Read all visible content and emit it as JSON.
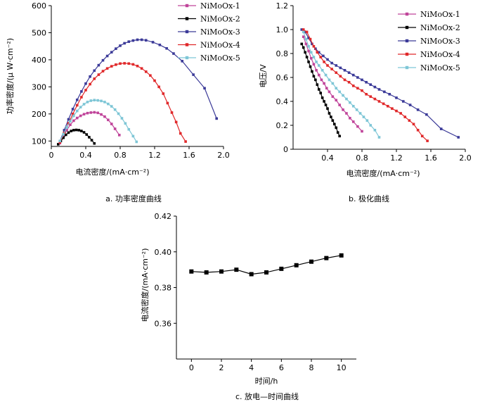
{
  "chart_data": [
    {
      "type": "line",
      "caption": "a.  功率密度曲线",
      "xlabel": "电流密度/(mA·cm⁻²)",
      "ylabel": "功率密度/(μ W·cm⁻²)",
      "xlim": [
        0,
        2.0
      ],
      "ylim": [
        80,
        600
      ],
      "xticks": [
        "0",
        "0.4",
        "0.8",
        "1.2",
        "1.6",
        "2.0"
      ],
      "xtick_values": [
        0,
        0.4,
        0.8,
        1.2,
        1.6,
        2.0
      ],
      "yticks": [
        "100",
        "200",
        "300",
        "400",
        "500",
        "600"
      ],
      "ytick_values": [
        100,
        200,
        300,
        400,
        500,
        600
      ],
      "legend_position": "top-right",
      "series": [
        {
          "name": "NiMoOx-1",
          "color": "#c0449a",
          "marker": "square",
          "x": [
            0.1,
            0.14,
            0.18,
            0.22,
            0.26,
            0.3,
            0.34,
            0.38,
            0.42,
            0.46,
            0.5,
            0.54,
            0.58,
            0.62,
            0.66,
            0.7,
            0.74,
            0.79
          ],
          "y": [
            92,
            118,
            140,
            160,
            175,
            185,
            193,
            199,
            203,
            205,
            206,
            204,
            198,
            190,
            178,
            163,
            145,
            122
          ]
        },
        {
          "name": "NiMoOx-2",
          "color": "#000000",
          "marker": "square",
          "x": [
            0.08,
            0.11,
            0.14,
            0.17,
            0.2,
            0.23,
            0.26,
            0.29,
            0.32,
            0.35,
            0.38,
            0.41,
            0.44,
            0.47,
            0.5
          ],
          "y": [
            88,
            100,
            112,
            123,
            131,
            137,
            140,
            141,
            140,
            137,
            132,
            124,
            114,
            103,
            91
          ]
        },
        {
          "name": "NiMoOx-3",
          "color": "#3b3a98",
          "marker": "square",
          "x": [
            0.1,
            0.15,
            0.2,
            0.25,
            0.3,
            0.35,
            0.4,
            0.45,
            0.5,
            0.55,
            0.6,
            0.65,
            0.7,
            0.75,
            0.8,
            0.85,
            0.9,
            0.95,
            1.0,
            1.05,
            1.1,
            1.18,
            1.26,
            1.34,
            1.42,
            1.52,
            1.65,
            1.78,
            1.92
          ],
          "y": [
            100,
            140,
            180,
            218,
            252,
            283,
            312,
            338,
            360,
            380,
            398,
            414,
            428,
            441,
            452,
            461,
            467,
            471,
            474,
            474,
            472,
            465,
            455,
            442,
            423,
            395,
            345,
            295,
            183
          ]
        },
        {
          "name": "NiMoOx-4",
          "color": "#e0282a",
          "marker": "square",
          "x": [
            0.1,
            0.15,
            0.2,
            0.25,
            0.3,
            0.35,
            0.4,
            0.45,
            0.5,
            0.55,
            0.6,
            0.65,
            0.7,
            0.75,
            0.8,
            0.85,
            0.9,
            0.95,
            1.0,
            1.05,
            1.1,
            1.15,
            1.2,
            1.25,
            1.3,
            1.35,
            1.4,
            1.45,
            1.5,
            1.56
          ],
          "y": [
            95,
            130,
            165,
            200,
            232,
            262,
            288,
            310,
            330,
            345,
            358,
            368,
            376,
            382,
            386,
            387,
            386,
            383,
            377,
            368,
            356,
            342,
            323,
            300,
            275,
            240,
            205,
            170,
            128,
            98
          ]
        },
        {
          "name": "NiMoOx-5",
          "color": "#7ec6d6",
          "marker": "square",
          "x": [
            0.1,
            0.14,
            0.18,
            0.22,
            0.26,
            0.3,
            0.34,
            0.38,
            0.42,
            0.46,
            0.5,
            0.54,
            0.58,
            0.62,
            0.66,
            0.7,
            0.74,
            0.78,
            0.82,
            0.86,
            0.9,
            0.95,
            0.99
          ],
          "y": [
            100,
            125,
            150,
            173,
            193,
            211,
            225,
            236,
            244,
            249,
            251,
            250,
            248,
            244,
            237,
            228,
            216,
            201,
            184,
            165,
            143,
            118,
            97
          ]
        }
      ]
    },
    {
      "type": "line",
      "caption": "b.  极化曲线",
      "xlabel": "电流密度/(mA·cm⁻²)",
      "ylabel": "电压/V",
      "xlim": [
        0,
        2.0
      ],
      "ylim": [
        0,
        1.2
      ],
      "xticks": [
        "0.4",
        "0.8",
        "1.2",
        "1.6",
        "2.0"
      ],
      "xtick_values": [
        0.4,
        0.8,
        1.2,
        1.6,
        2.0
      ],
      "yticks": [
        "0",
        "0.2",
        "0.4",
        "0.6",
        "0.8",
        "1.0",
        "1.2"
      ],
      "ytick_values": [
        0,
        0.2,
        0.4,
        0.6,
        0.8,
        1.0,
        1.2
      ],
      "legend_position": "top-right",
      "series": [
        {
          "name": "NiMoOx-1",
          "color": "#c0449a",
          "marker": "square",
          "x": [
            0.12,
            0.15,
            0.18,
            0.21,
            0.24,
            0.27,
            0.3,
            0.33,
            0.36,
            0.39,
            0.42,
            0.46,
            0.5,
            0.54,
            0.58,
            0.62,
            0.66,
            0.7,
            0.75,
            0.8
          ],
          "y": [
            0.94,
            0.88,
            0.82,
            0.76,
            0.71,
            0.66,
            0.62,
            0.58,
            0.55,
            0.51,
            0.48,
            0.44,
            0.41,
            0.37,
            0.33,
            0.3,
            0.26,
            0.23,
            0.19,
            0.15
          ]
        },
        {
          "name": "NiMoOx-2",
          "color": "#000000",
          "marker": "square",
          "x": [
            0.1,
            0.12,
            0.14,
            0.16,
            0.18,
            0.2,
            0.22,
            0.24,
            0.26,
            0.28,
            0.3,
            0.32,
            0.34,
            0.36,
            0.38,
            0.4,
            0.42,
            0.44,
            0.46,
            0.48,
            0.5,
            0.52,
            0.54
          ],
          "y": [
            0.88,
            0.85,
            0.81,
            0.77,
            0.73,
            0.69,
            0.65,
            0.61,
            0.58,
            0.54,
            0.5,
            0.47,
            0.43,
            0.4,
            0.37,
            0.34,
            0.3,
            0.27,
            0.24,
            0.21,
            0.18,
            0.14,
            0.11
          ]
        },
        {
          "name": "NiMoOx-3",
          "color": "#3b3a98",
          "marker": "square",
          "x": [
            0.1,
            0.14,
            0.18,
            0.22,
            0.26,
            0.3,
            0.35,
            0.4,
            0.45,
            0.5,
            0.55,
            0.6,
            0.65,
            0.7,
            0.75,
            0.8,
            0.85,
            0.9,
            0.95,
            1.0,
            1.06,
            1.12,
            1.2,
            1.28,
            1.36,
            1.45,
            1.55,
            1.72,
            1.92
          ],
          "y": [
            1.0,
            0.98,
            0.93,
            0.88,
            0.84,
            0.81,
            0.78,
            0.75,
            0.72,
            0.7,
            0.68,
            0.66,
            0.64,
            0.62,
            0.6,
            0.58,
            0.56,
            0.54,
            0.52,
            0.5,
            0.48,
            0.46,
            0.43,
            0.4,
            0.37,
            0.33,
            0.29,
            0.17,
            0.1
          ]
        },
        {
          "name": "NiMoOx-4",
          "color": "#e0282a",
          "marker": "square",
          "x": [
            0.12,
            0.16,
            0.2,
            0.24,
            0.28,
            0.32,
            0.36,
            0.4,
            0.45,
            0.5,
            0.55,
            0.6,
            0.65,
            0.7,
            0.75,
            0.8,
            0.85,
            0.9,
            0.95,
            1.0,
            1.05,
            1.1,
            1.15,
            1.2,
            1.25,
            1.3,
            1.35,
            1.4,
            1.45,
            1.5,
            1.56
          ],
          "y": [
            1.0,
            0.98,
            0.92,
            0.86,
            0.81,
            0.77,
            0.73,
            0.7,
            0.67,
            0.64,
            0.61,
            0.58,
            0.56,
            0.53,
            0.51,
            0.49,
            0.46,
            0.44,
            0.42,
            0.4,
            0.38,
            0.36,
            0.34,
            0.32,
            0.3,
            0.27,
            0.24,
            0.21,
            0.16,
            0.11,
            0.07
          ]
        },
        {
          "name": "NiMoOx-5",
          "color": "#7ec6d6",
          "marker": "square",
          "x": [
            0.12,
            0.15,
            0.18,
            0.21,
            0.24,
            0.27,
            0.3,
            0.34,
            0.38,
            0.42,
            0.46,
            0.5,
            0.54,
            0.58,
            0.62,
            0.66,
            0.7,
            0.74,
            0.78,
            0.82,
            0.86,
            0.9,
            0.95,
            1.0
          ],
          "y": [
            0.98,
            0.92,
            0.86,
            0.81,
            0.77,
            0.73,
            0.7,
            0.66,
            0.62,
            0.58,
            0.55,
            0.51,
            0.48,
            0.45,
            0.42,
            0.39,
            0.36,
            0.33,
            0.3,
            0.27,
            0.24,
            0.2,
            0.16,
            0.1
          ]
        }
      ]
    },
    {
      "type": "line",
      "caption": "c.  放电—时间曲线",
      "xlabel": "时间/h",
      "ylabel": "电流密度/(mA·cm⁻²)",
      "xlim": [
        -1,
        11
      ],
      "ylim": [
        0.34,
        0.42
      ],
      "xticks": [
        "0",
        "2",
        "4",
        "6",
        "8",
        "10"
      ],
      "xtick_values": [
        0,
        2,
        4,
        6,
        8,
        10
      ],
      "yticks": [
        "0.36",
        "0.38",
        "0.40",
        "0.42"
      ],
      "ytick_values": [
        0.36,
        0.38,
        0.4,
        0.42
      ],
      "series": [
        {
          "color": "#000000",
          "marker": "square",
          "x": [
            0,
            1,
            2,
            3,
            4,
            5,
            6,
            7,
            8,
            9,
            10
          ],
          "y": [
            0.389,
            0.3885,
            0.389,
            0.39,
            0.3875,
            0.3885,
            0.3905,
            0.3925,
            0.3945,
            0.3965,
            0.398
          ]
        }
      ]
    }
  ]
}
